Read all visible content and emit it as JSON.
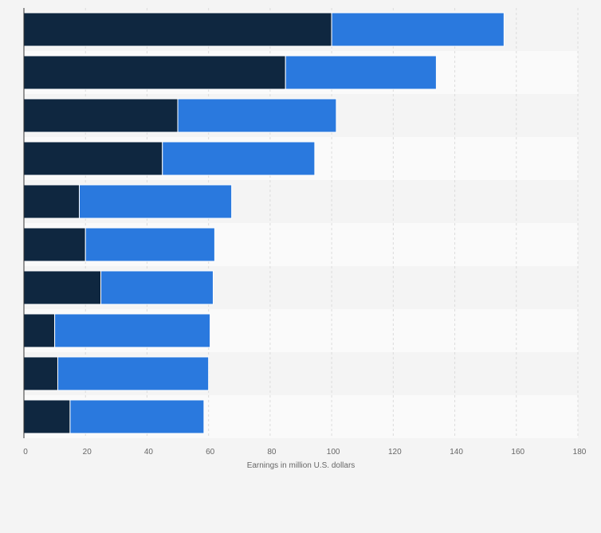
{
  "chart_data": {
    "type": "bar",
    "orientation": "horizontal",
    "stacked": true,
    "categories": [
      "",
      "",
      "",
      "",
      "",
      "",
      "",
      "",
      "",
      ""
    ],
    "series": [
      {
        "values": [
          100,
          85,
          50,
          45,
          18,
          20,
          25,
          10,
          11,
          15
        ],
        "color": "#0f2740"
      },
      {
        "values": [
          56,
          49,
          51.5,
          49.5,
          49.5,
          42,
          36.5,
          50.5,
          49,
          43.5
        ],
        "color": "#2a79de"
      }
    ],
    "xlabel": "Earnings in million U.S. dollars",
    "xlim": [
      0,
      180
    ],
    "xticks": [
      0,
      20,
      40,
      60,
      80,
      100,
      120,
      140,
      160,
      180
    ],
    "grid": true,
    "legend": "none"
  }
}
